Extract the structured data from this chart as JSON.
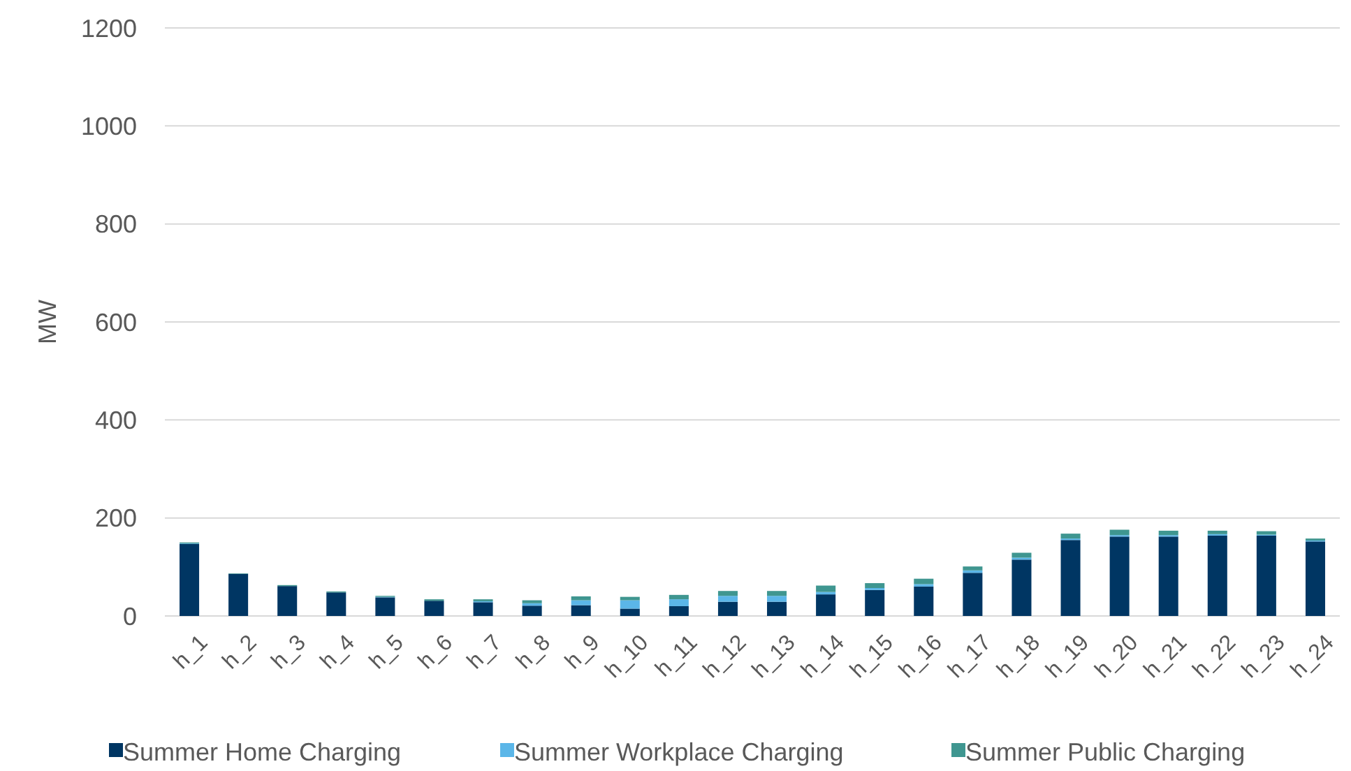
{
  "chart_data": {
    "type": "bar",
    "stacked": true,
    "ylabel": "MW",
    "categories": [
      "h_1",
      "h_2",
      "h_3",
      "h_4",
      "h_5",
      "h_6",
      "h_7",
      "h_8",
      "h_9",
      "h_10",
      "h_11",
      "h_12",
      "h_13",
      "h_14",
      "h_15",
      "h_16",
      "h_17",
      "h_18",
      "h_19",
      "h_20",
      "h_21",
      "h_22",
      "h_23",
      "h_24"
    ],
    "series": [
      {
        "name": "Summer Home Charging",
        "color": "#003663",
        "values": [
          147,
          86,
          61,
          48,
          38,
          31,
          28,
          21,
          22,
          15,
          20,
          29,
          29,
          44,
          53,
          60,
          88,
          115,
          155,
          162,
          162,
          164,
          164,
          152
        ]
      },
      {
        "name": "Summer Workplace Charging",
        "color": "#5bb6e8",
        "values": [
          1,
          0,
          0,
          0,
          1,
          null,
          2,
          5,
          10,
          17,
          14,
          12,
          12,
          5,
          4,
          5,
          5,
          4,
          3,
          3,
          3,
          3,
          2,
          2
        ]
      },
      {
        "name": "Summer Public Charging",
        "color": "#3f9690",
        "values": [
          2,
          1,
          2,
          2,
          2,
          3,
          4,
          6,
          8,
          7,
          9,
          10,
          10,
          13,
          10,
          11,
          8,
          10,
          10,
          11,
          9,
          7,
          7,
          4
        ]
      }
    ],
    "ylim": [
      0,
      1200
    ],
    "yticks": [
      0,
      200,
      400,
      600,
      800,
      1000,
      1200
    ],
    "grid": "y",
    "legend": "bottom"
  }
}
